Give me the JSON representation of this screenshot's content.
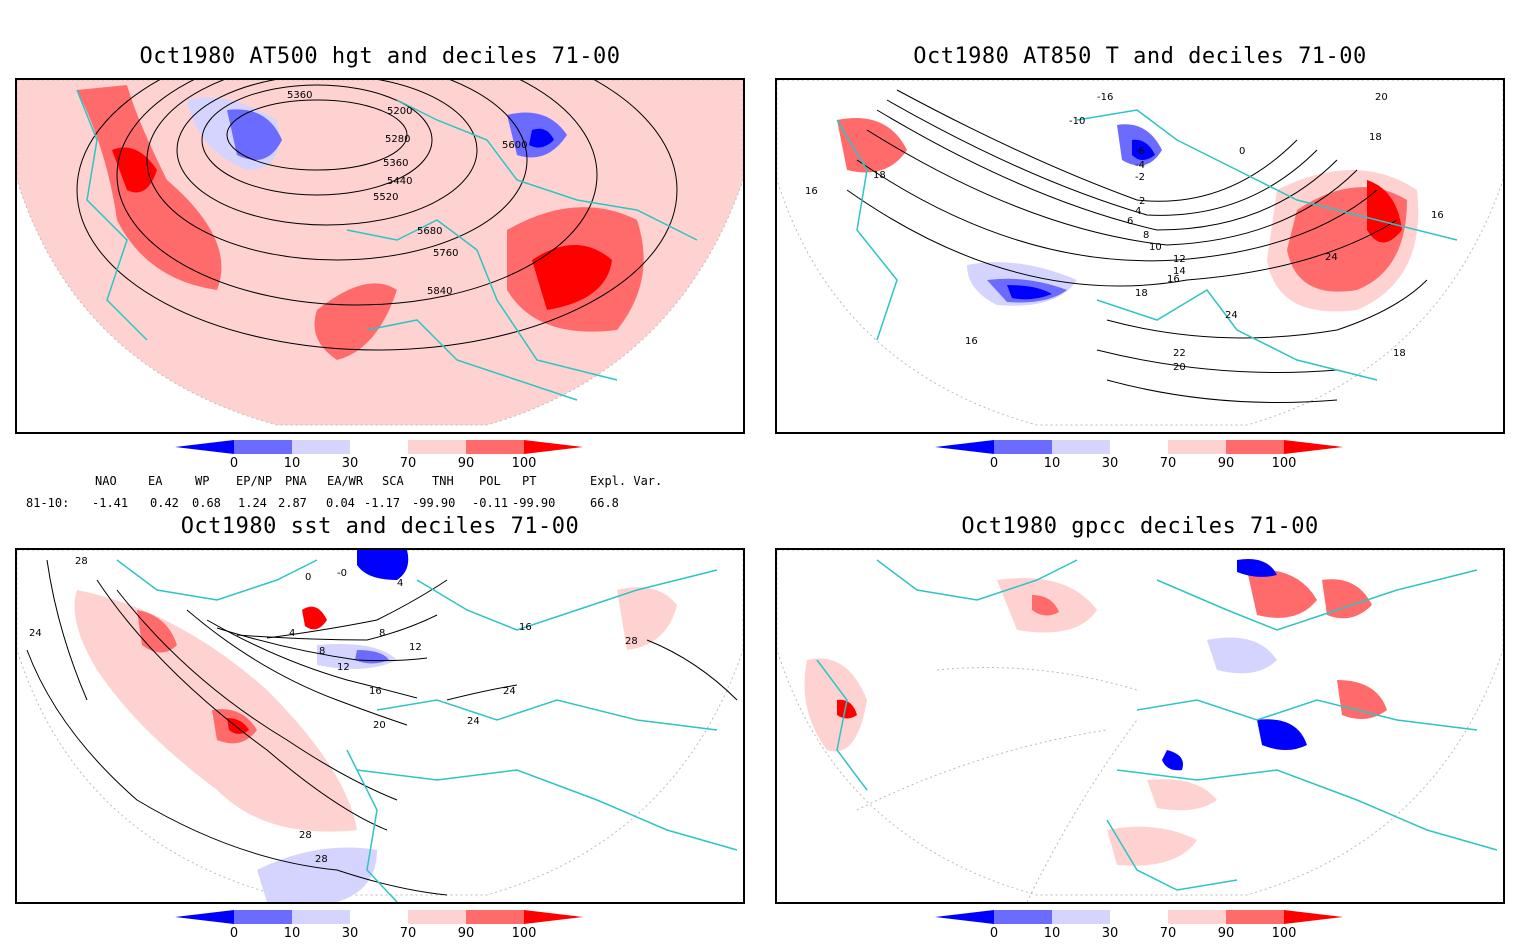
{
  "panels": [
    {
      "title": "Oct1980 AT500 hgt and deciles 71-00",
      "contour_labels": [
        "5200",
        "5360",
        "5280",
        "5360",
        "5440",
        "5520",
        "5600",
        "5680",
        "5760",
        "5840"
      ]
    },
    {
      "title": "Oct1980 AT850 T and deciles 71-00",
      "contour_labels": [
        "-16",
        "-10",
        "-6",
        "-4",
        "-2",
        "0",
        "2",
        "4",
        "6",
        "8",
        "10",
        "12",
        "14",
        "16",
        "18",
        "20",
        "22",
        "24",
        "16",
        "18",
        "16",
        "16",
        "18",
        "24",
        "18",
        "20"
      ]
    },
    {
      "title": "Oct1980 sst and deciles 71-00",
      "contour_labels": [
        "28",
        "24",
        "0",
        "-0",
        "4",
        "8",
        "12",
        "16",
        "20",
        "24",
        "24",
        "28",
        "28",
        "28",
        "4",
        "8",
        "12",
        "16"
      ]
    },
    {
      "title": "Oct1980 gpcc deciles 71-00",
      "contour_labels": []
    }
  ],
  "colorbar": {
    "ticks": [
      "0",
      "10",
      "30",
      "70",
      "90",
      "100"
    ],
    "colors": [
      "#0000ff",
      "#6b6bff",
      "#d4d4ff",
      "#ffffff",
      "#ffd2d2",
      "#ff6b6b",
      "#ff0000"
    ]
  },
  "indices": {
    "headers": [
      "NAO",
      "EA",
      "WP",
      "EP/NP",
      "PNA",
      "EA/WR",
      "SCA",
      "TNH",
      "POL",
      "PT",
      "Expl. Var."
    ],
    "row_label": "81-10:",
    "values": [
      "-1.41",
      "0.42",
      "0.68",
      "1.24",
      "2.87",
      "0.04",
      "-1.17",
      "-99.90",
      "-0.11",
      "-99.90",
      "66.8"
    ]
  },
  "colors": {
    "coastline": "#2ec4c4",
    "strong_red": "#ff0000",
    "mid_red": "#ff6b6b",
    "light_red": "#ffd2d2",
    "strong_blue": "#0000ff",
    "mid_blue": "#6b6bff",
    "light_blue": "#d4d4ff"
  }
}
